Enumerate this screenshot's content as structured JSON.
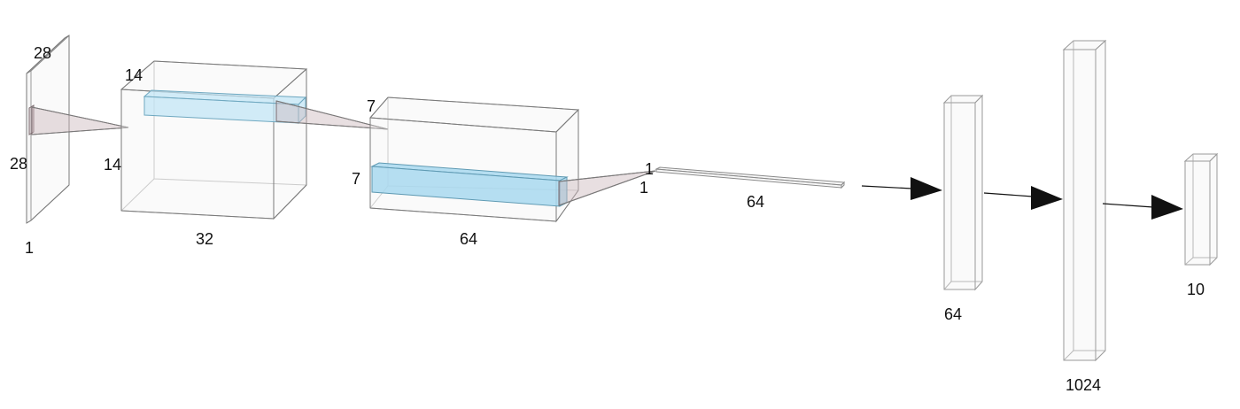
{
  "diagram": {
    "input_layer": {
      "height_label": "28",
      "width_label": "28",
      "depth_label": "1"
    },
    "conv1_layer": {
      "height_label": "14",
      "width_label": "14",
      "depth_label": "32"
    },
    "conv2_layer": {
      "height_label": "7",
      "width_label": "7",
      "depth_label": "64"
    },
    "flatten_layer": {
      "label_top": "1",
      "label_bottom": "1",
      "depth_label": "64"
    },
    "dense_layers": [
      {
        "label": "64"
      },
      {
        "label": "1024"
      },
      {
        "label": "10"
      }
    ],
    "colors": {
      "kernel_fill": "#bfe4f5",
      "cone_fill": "#cdb9bd",
      "edge": "#8a8a8a",
      "arrow": "#111111"
    }
  }
}
